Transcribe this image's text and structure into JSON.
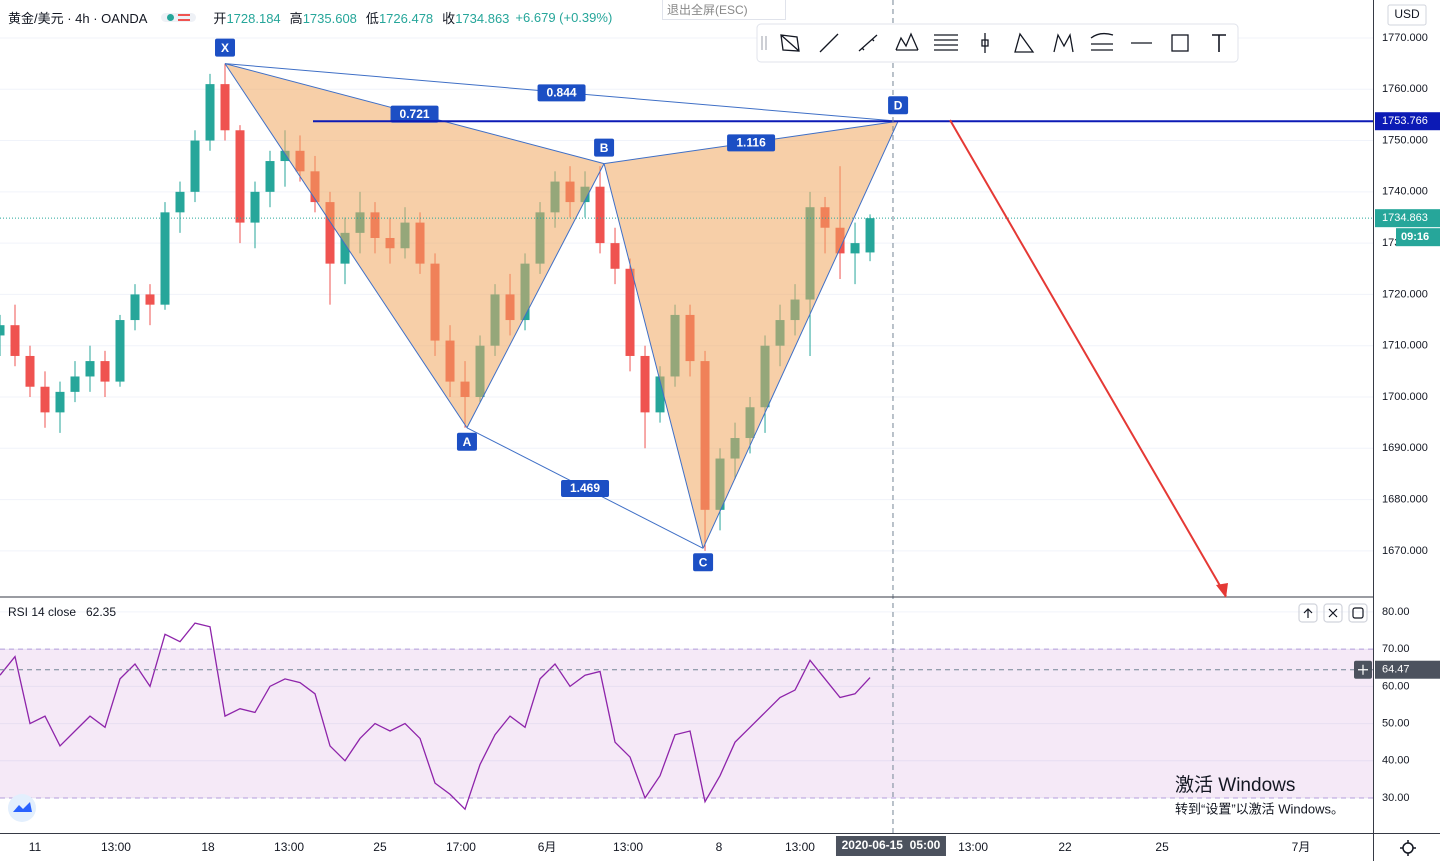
{
  "header": {
    "title": "黄金/美元 · 4h · OANDA",
    "open_label": "开",
    "high_label": "高",
    "low_label": "低",
    "close_label": "收",
    "change": "+6.679 (+0.39%)",
    "exit_fullscreen": "退出全屏(ESC)",
    "currency": "USD",
    "countdown": "09:16"
  },
  "chart_data": [
    {
      "type": "candlestick",
      "x": [
        0,
        1,
        2,
        3,
        4,
        5,
        6,
        7,
        8,
        9,
        10,
        11,
        12,
        13,
        14,
        15,
        16,
        17,
        18,
        19,
        20,
        21,
        22,
        23,
        24,
        25,
        26,
        27,
        28,
        29,
        30,
        31,
        32,
        33,
        34,
        35,
        36,
        37,
        38,
        39,
        40,
        41,
        42,
        43,
        44,
        45,
        46,
        47,
        48,
        49,
        50,
        51,
        52,
        53,
        54,
        55,
        56,
        57,
        58
      ],
      "open": [
        1712,
        1714,
        1708,
        1702,
        1697,
        1701,
        1704,
        1707,
        1703,
        1715,
        1720,
        1718,
        1736,
        1740,
        1750,
        1761,
        1752,
        1734,
        1740,
        1746,
        1748,
        1744,
        1738,
        1726,
        1732,
        1736,
        1731,
        1729,
        1734,
        1726,
        1711,
        1703,
        1700,
        1710,
        1720,
        1715,
        1726,
        1736,
        1742,
        1738,
        1741,
        1730,
        1725,
        1708,
        1697,
        1704,
        1716,
        1707,
        1678,
        1688,
        1692,
        1698,
        1710,
        1715,
        1719,
        1737,
        1733,
        1728,
        1728.184
      ],
      "high": [
        1716,
        1718,
        1710,
        1705,
        1703,
        1707,
        1710,
        1709,
        1716,
        1722,
        1722,
        1738,
        1742,
        1752,
        1763,
        1765,
        1753,
        1742,
        1748,
        1752,
        1751,
        1747,
        1740,
        1735,
        1740,
        1738,
        1735,
        1737,
        1736,
        1728,
        1714,
        1707,
        1712,
        1722,
        1724,
        1728,
        1738,
        1744,
        1745,
        1744,
        1745,
        1733,
        1727,
        1710,
        1706,
        1718,
        1718,
        1709,
        1690,
        1695,
        1700,
        1712,
        1718,
        1722,
        1740,
        1739,
        1745,
        1734,
        1735.608
      ],
      "low": [
        1708,
        1706,
        1700,
        1694,
        1693,
        1699,
        1701,
        1700,
        1702,
        1713,
        1714,
        1717,
        1732,
        1738,
        1748,
        1750,
        1730,
        1729,
        1737,
        1741,
        1742,
        1736,
        1718,
        1722,
        1728,
        1728,
        1726,
        1727,
        1724,
        1708,
        1700,
        1694,
        1699,
        1708,
        1712,
        1713,
        1724,
        1733,
        1735,
        1735,
        1728,
        1722,
        1705,
        1690,
        1695,
        1702,
        1704,
        1670,
        1674,
        1684,
        1689,
        1693,
        1706,
        1712,
        1708,
        1728,
        1723,
        1722,
        1726.478
      ],
      "close": [
        1714,
        1708,
        1702,
        1697,
        1701,
        1704,
        1707,
        1703,
        1715,
        1720,
        1718,
        1736,
        1740,
        1750,
        1761,
        1752,
        1734,
        1740,
        1746,
        1748,
        1744,
        1738,
        1726,
        1732,
        1736,
        1731,
        1729,
        1734,
        1726,
        1711,
        1703,
        1700,
        1710,
        1720,
        1715,
        1726,
        1736,
        1742,
        1738,
        1741,
        1730,
        1725,
        1708,
        1697,
        1704,
        1716,
        1707,
        1678,
        1688,
        1692,
        1698,
        1710,
        1715,
        1719,
        1737,
        1733,
        1728,
        1730,
        1734.863
      ],
      "up_color": "#26a69a",
      "down_color": "#ef5350",
      "xlim": [
        0,
        91.53
      ],
      "xticks": [
        {
          "value": 2.33,
          "label": "11"
        },
        {
          "value": 7.73,
          "label": "13:00"
        },
        {
          "value": 13.87,
          "label": "18"
        },
        {
          "value": 19.27,
          "label": "13:00"
        },
        {
          "value": 25.33,
          "label": "25"
        },
        {
          "value": 30.73,
          "label": "17:00"
        },
        {
          "value": 36.47,
          "label": "6月"
        },
        {
          "value": 41.87,
          "label": "13:00"
        },
        {
          "value": 47.93,
          "label": "8"
        },
        {
          "value": 53.33,
          "label": "13:00"
        },
        {
          "value": 64.87,
          "label": "13:00"
        },
        {
          "value": 71,
          "label": "22"
        },
        {
          "value": 77.47,
          "label": "25"
        },
        {
          "value": 86.73,
          "label": "7月"
        }
      ],
      "ylim": [
        1661.2,
        1777.4
      ],
      "yticks": [
        {
          "value": 1670,
          "label": "1670.000"
        },
        {
          "value": 1680,
          "label": "1680.000"
        },
        {
          "value": 1690,
          "label": "1690.000"
        },
        {
          "value": 1700,
          "label": "1700.000"
        },
        {
          "value": 1710,
          "label": "1710.000"
        },
        {
          "value": 1720,
          "label": "1720.000"
        },
        {
          "value": 1730,
          "label": "1730.000"
        },
        {
          "value": 1740,
          "label": "1740.000"
        },
        {
          "value": 1750,
          "label": "1750.000"
        },
        {
          "value": 1760,
          "label": "1760.000"
        },
        {
          "value": 1770,
          "label": "1770.000"
        }
      ],
      "grid": true,
      "pattern": {
        "color": "#3f6fc6",
        "fill": "#f0a860",
        "points": [
          {
            "label": "X",
            "x": 15,
            "y": 1765
          },
          {
            "label": "A",
            "x": 31.13,
            "y": 1694
          },
          {
            "label": "B",
            "x": 40.27,
            "y": 1745.5
          },
          {
            "label": "C",
            "x": 46.87,
            "y": 1670.5
          },
          {
            "label": "D",
            "x": 59.87,
            "y": 1753.766
          }
        ],
        "ratios": [
          0.721,
          0.844,
          1.116,
          1.469
        ]
      },
      "hline": {
        "value": 1753.766,
        "color": "#0c1ab5"
      },
      "crosshair": {
        "x": 59.53,
        "label": "2020-06-15  05:00"
      }
    },
    {
      "type": "line",
      "title": "RSI 14 close",
      "color": "#8e24aa",
      "x": [
        0,
        1,
        2,
        3,
        4,
        5,
        6,
        7,
        8,
        9,
        10,
        11,
        12,
        13,
        14,
        15,
        16,
        17,
        18,
        19,
        20,
        21,
        22,
        23,
        24,
        25,
        26,
        27,
        28,
        29,
        30,
        31,
        32,
        33,
        34,
        35,
        36,
        37,
        38,
        39,
        40,
        41,
        42,
        43,
        44,
        45,
        46,
        47,
        48,
        49,
        50,
        51,
        52,
        53,
        54,
        55,
        56,
        57,
        58
      ],
      "values": [
        63,
        68,
        50,
        52,
        44,
        48,
        52,
        49,
        62,
        66,
        60,
        74,
        72,
        77,
        76,
        52,
        54,
        53,
        60,
        62,
        61,
        58,
        44,
        40,
        46,
        50,
        48,
        50,
        46,
        34,
        31,
        27,
        39,
        47,
        52,
        49,
        62,
        66,
        60,
        63,
        64,
        45,
        41,
        30,
        36,
        47,
        48,
        29,
        36,
        45,
        49,
        53,
        57,
        59,
        67,
        62,
        57,
        58,
        62.35
      ],
      "xlim": [
        0,
        91.53
      ],
      "ylim": [
        20.6,
        83.2
      ],
      "yticks": [
        {
          "value": 30,
          "label": "30.00"
        },
        {
          "value": 40,
          "label": "40.00"
        },
        {
          "value": 50,
          "label": "50.00"
        },
        {
          "value": 60,
          "label": "60.00"
        },
        {
          "value": 70,
          "label": "70.00"
        },
        {
          "value": 80,
          "label": "80.00"
        }
      ],
      "band": [
        30,
        70
      ],
      "crosshair": {
        "value": 64.47
      }
    }
  ],
  "watermark": {
    "line1": "激活 Windows",
    "line2": "转到“设置”以激活 Windows。"
  }
}
